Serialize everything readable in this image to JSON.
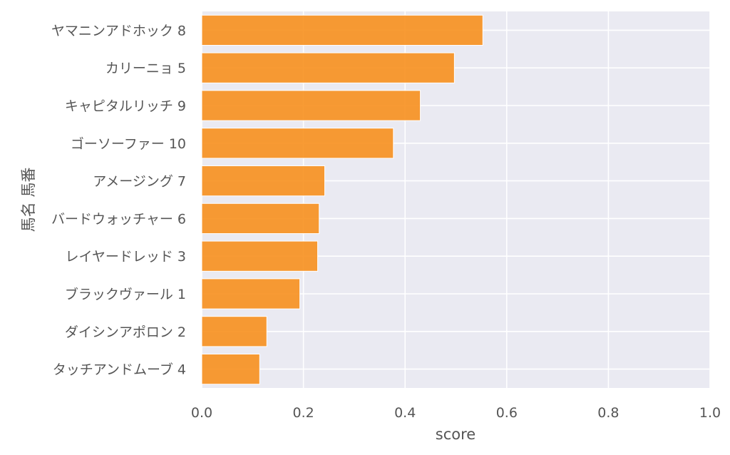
{
  "chart_data": {
    "type": "bar",
    "orientation": "horizontal",
    "categories": [
      "ヤマニンアドホック 8",
      "カリーニョ 5",
      "キャピタルリッチ 9",
      "ゴーソーファー 10",
      "アメージング 7",
      "バードウォッチャー 6",
      "レイヤードレッド 3",
      "ブラックヴァール 1",
      "ダイシンアポロン 2",
      "タッチアンドムーブ 4"
    ],
    "values": [
      0.553,
      0.497,
      0.43,
      0.377,
      0.242,
      0.231,
      0.228,
      0.193,
      0.128,
      0.114
    ],
    "xlabel": "score",
    "ylabel": "馬名 馬番",
    "xlim": [
      0.0,
      1.0
    ],
    "xticks": [
      "0.0",
      "0.2",
      "0.4",
      "0.6",
      "0.8",
      "1.0"
    ],
    "grid": true,
    "legend": "none",
    "colors": {
      "bar": "#f7901e",
      "plot_background": "#eaeaf2",
      "grid": "#ffffff",
      "text": "#555555"
    }
  }
}
